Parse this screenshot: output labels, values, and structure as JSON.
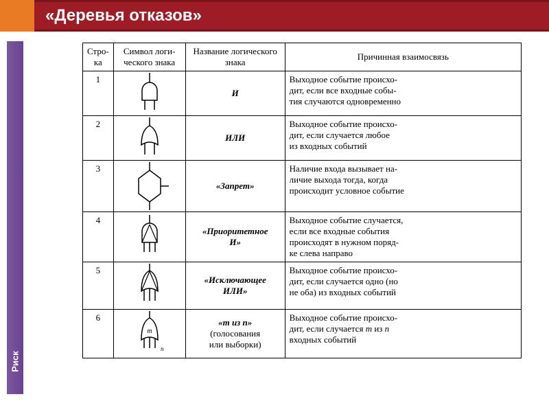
{
  "title": "«Деревья отказов»",
  "sidebar_label": "Риск",
  "table": {
    "headers": [
      "Стро-\nка",
      "Символ логи-\nческого знака",
      "Название\nлогического знака",
      "Причинная\nвзаимосвязь"
    ],
    "rows": [
      {
        "num": "1",
        "name_html": "И",
        "desc": "Выходное событие происхо-\nдит, если все входные собы-\nтия случаются одновременно"
      },
      {
        "num": "2",
        "name_html": "ИЛИ",
        "desc": "Выходное событие происхо-\nдит, если случается любое\nиз входных событий"
      },
      {
        "num": "3",
        "name_html": "«Запрет»",
        "desc": "Наличие входа вызывает на-\nличие выхода тогда, когда\nпроисходит условное событие"
      },
      {
        "num": "4",
        "name_html": "«Приоритетное\nИ»",
        "desc": "Выходное событие случается,\nесли все входные события\nпроисходят в нужном поряд-\nке слева направо"
      },
      {
        "num": "5",
        "name_html": "«Исключающее\nИЛИ»",
        "desc": "Выходное событие происхо-\nдит, если случается одно (но\nне оба) из входных событий"
      },
      {
        "num": "6",
        "name_html": "«m из n»",
        "name_sub": "(голосования\nили выборки)",
        "desc_html": "Выходное событие происхо-\nдит, если случается <i>m</i> из <i>n</i>\nвходных событий"
      }
    ]
  },
  "colors": {
    "accent": "#e87b23",
    "titlebar": "#9d1c26",
    "sidebar": "#6a4190"
  }
}
